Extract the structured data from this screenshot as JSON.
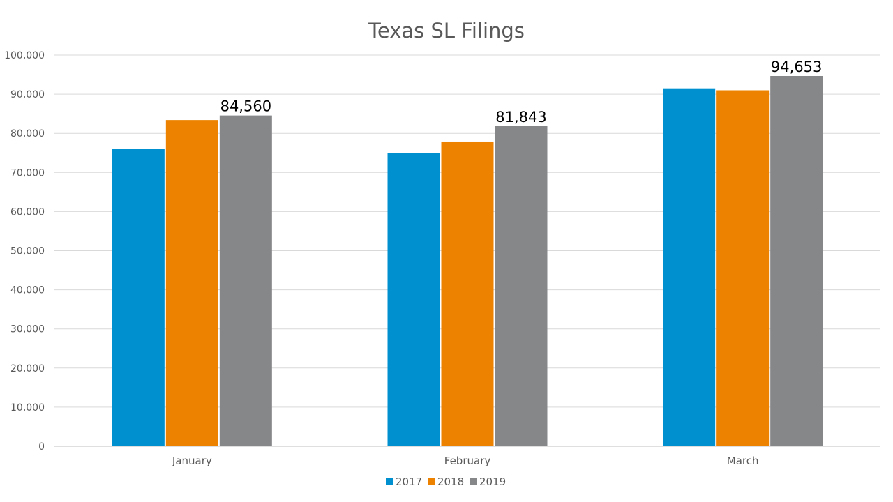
{
  "chart_data": {
    "type": "bar",
    "title": "Texas SL Filings",
    "xlabel": "",
    "ylabel": "",
    "categories": [
      "January",
      "February",
      "March"
    ],
    "series": [
      {
        "name": "2017",
        "color": "#0090d0",
        "values": [
          76100,
          75000,
          91500
        ]
      },
      {
        "name": "2018",
        "color": "#ec8200",
        "values": [
          83400,
          77900,
          91000
        ]
      },
      {
        "name": "2019",
        "color": "#868789",
        "values": [
          84560,
          81843,
          94653
        ]
      }
    ],
    "data_labels": [
      {
        "series": 2,
        "category": 0,
        "text": "84,560"
      },
      {
        "series": 2,
        "category": 1,
        "text": "81,843"
      },
      {
        "series": 2,
        "category": 2,
        "text": "94,653"
      }
    ],
    "ylim": [
      0,
      100000
    ],
    "yticks": [
      {
        "value": 0,
        "label": "0"
      },
      {
        "value": 10000,
        "label": "10,000"
      },
      {
        "value": 20000,
        "label": "20,000"
      },
      {
        "value": 30000,
        "label": "30,000"
      },
      {
        "value": 40000,
        "label": "40,000"
      },
      {
        "value": 50000,
        "label": "50,000"
      },
      {
        "value": 60000,
        "label": "60,000"
      },
      {
        "value": 70000,
        "label": "70,000"
      },
      {
        "value": 80000,
        "label": "80,000"
      },
      {
        "value": 90000,
        "label": "90,000"
      },
      {
        "value": 100000,
        "label": "100,000"
      }
    ],
    "grid": true,
    "legend_position": "bottom"
  }
}
